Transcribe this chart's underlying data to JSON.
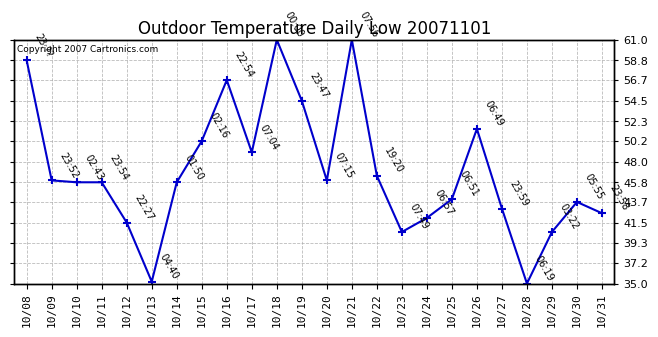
{
  "title": "Outdoor Temperature Daily Low 20071101",
  "copyright_text": "Copyright 2007 Cartronics.com",
  "x_labels": [
    "10/08",
    "10/09",
    "10/10",
    "10/11",
    "10/12",
    "10/13",
    "10/14",
    "10/15",
    "10/16",
    "10/17",
    "10/18",
    "10/19",
    "10/20",
    "10/21",
    "10/22",
    "10/23",
    "10/24",
    "10/25",
    "10/26",
    "10/27",
    "10/28",
    "10/29",
    "10/30",
    "10/31"
  ],
  "y_values": [
    58.8,
    46.0,
    45.8,
    45.8,
    41.5,
    35.2,
    45.8,
    50.2,
    56.7,
    49.0,
    61.0,
    54.5,
    46.0,
    61.0,
    46.5,
    40.5,
    42.0,
    44.0,
    51.5,
    43.0,
    35.0,
    40.5,
    43.7,
    42.5
  ],
  "time_labels": [
    "23:??",
    "23:52",
    "02:43",
    "23:54",
    "22:27",
    "04:40",
    "01:50",
    "02:16",
    "22:54",
    "07:04",
    "00:00",
    "23:47",
    "07:15",
    "07:56",
    "19:20",
    "07:49",
    "06:57",
    "06:51",
    "06:49",
    "23:59",
    "06:19",
    "03:22",
    "05:55",
    "23:58"
  ],
  "ylim": [
    35.0,
    61.0
  ],
  "yticks": [
    35.0,
    37.2,
    39.3,
    41.5,
    43.7,
    45.8,
    48.0,
    50.2,
    52.3,
    54.5,
    56.7,
    58.8,
    61.0
  ],
  "line_color": "#0000CC",
  "marker_color": "#0000CC",
  "grid_color": "#AAAAAA",
  "background_color": "#FFFFFF",
  "title_fontsize": 12,
  "tick_fontsize": 8,
  "annot_fontsize": 7
}
